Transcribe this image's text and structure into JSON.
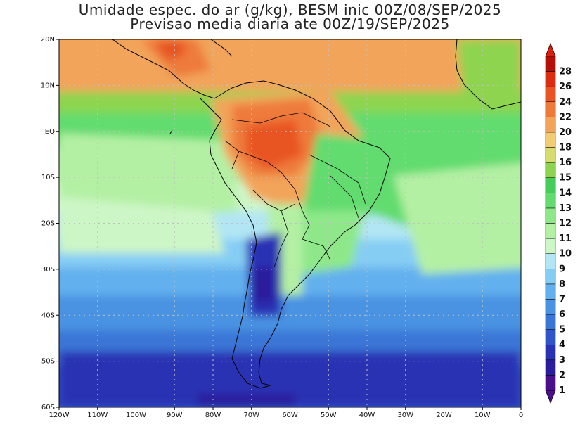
{
  "title_line1": "Umidade espec. do ar (g/kg), BESM inic 00Z/08/SEP/2025",
  "title_line2": "Previsao media diaria ate 00Z/19/SEP/2025",
  "lat_ticks": [
    "20N",
    "10N",
    "EQ",
    "10S",
    "20S",
    "30S",
    "40S",
    "50S",
    "60S"
  ],
  "lon_ticks": [
    "120W",
    "110W",
    "100W",
    "90W",
    "80W",
    "70W",
    "60W",
    "50W",
    "40W",
    "30W",
    "20W",
    "10W",
    "0"
  ],
  "colorbar": {
    "labels": [
      "1",
      "2",
      "3",
      "4",
      "5",
      "6",
      "7",
      "8",
      "9",
      "10",
      "11",
      "12",
      "13",
      "14",
      "15",
      "16",
      "18",
      "20",
      "22",
      "24",
      "26",
      "28"
    ],
    "colors": [
      "#4b0f8c",
      "#2b1c9c",
      "#2a32b4",
      "#2f55c8",
      "#3a76d6",
      "#4a93e2",
      "#62b0ee",
      "#86cdf4",
      "#b2e6f4",
      "#cdf6c6",
      "#b4f0a4",
      "#8ee88a",
      "#62dc6e",
      "#46cc58",
      "#8ed450",
      "#d6dc6e",
      "#f2cc74",
      "#f2a45a",
      "#ee7a3a",
      "#e85424",
      "#dc2c12",
      "#b41008"
    ],
    "min_label_color": "#4b0f8c",
    "max_label_color": "#d81e0e"
  },
  "map": {
    "lon_range": [
      -120,
      0
    ],
    "lat_range": [
      -60,
      20
    ],
    "grid": true
  }
}
